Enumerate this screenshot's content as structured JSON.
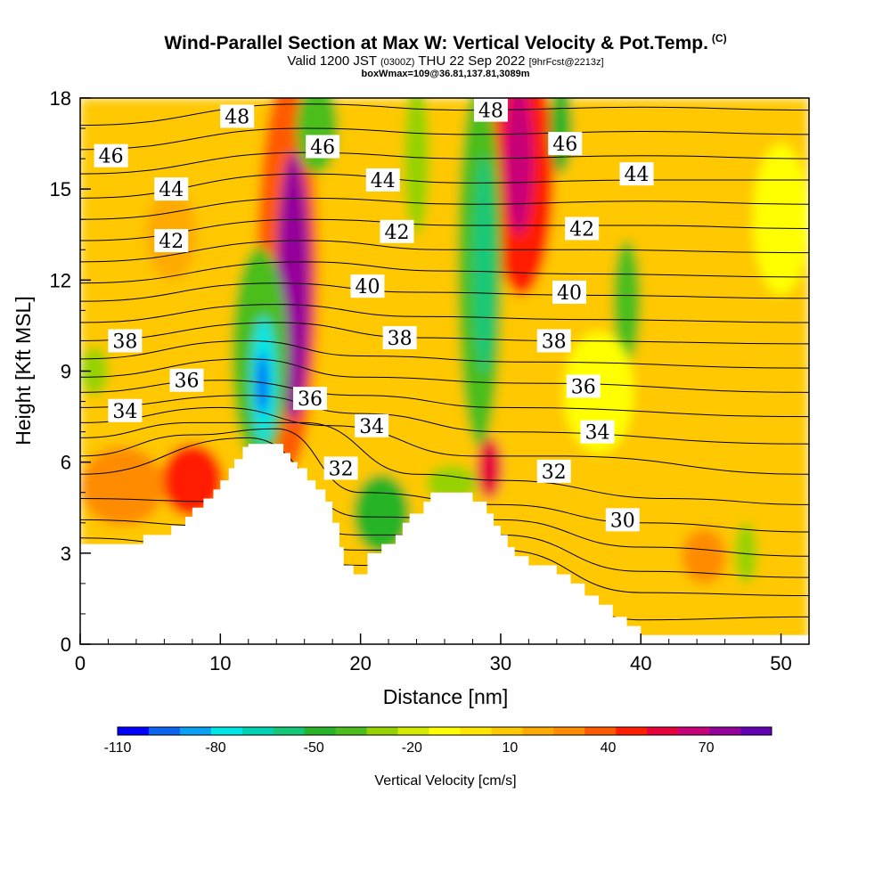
{
  "header": {
    "title": "Wind-Parallel Section at Max W: Vertical Velocity & Pot.Temp.",
    "copyright": "(C)",
    "subtitle_main": "Valid 1200 JST",
    "subtitle_utc": "(0300Z)",
    "subtitle_date": "THU 22 Sep 2022",
    "subtitle_fcst": "[9hrFcst@2213z]",
    "boxline": "boxWmax=109@36.81,137.81,3089m"
  },
  "chart_data": {
    "type": "heatmap",
    "title": "Wind-Parallel Section at Max W: Vertical Velocity & Pot.Temp.",
    "xlabel": "Distance [nm]",
    "ylabel": "Height [Kft MSL]",
    "xlim": [
      0,
      52
    ],
    "ylim": [
      0,
      18
    ],
    "x_ticks": [
      0,
      10,
      20,
      30,
      40,
      50
    ],
    "y_ticks": [
      0,
      3,
      6,
      9,
      12,
      15,
      18
    ],
    "colorbar": {
      "label": "Vertical Velocity [cm/s]",
      "tick_labels": [
        "-110",
        "-80",
        "-50",
        "-20",
        "10",
        "40",
        "70"
      ],
      "tick_values": [
        -110,
        -80,
        -50,
        -20,
        10,
        40,
        70
      ],
      "range": [
        -110,
        90
      ],
      "colors": [
        "#0000ff",
        "#0a64f0",
        "#0aa0f5",
        "#00e6e6",
        "#00d2b4",
        "#14c878",
        "#28b428",
        "#4bbe1e",
        "#96d200",
        "#d2eb00",
        "#ffff00",
        "#ffe600",
        "#ffc800",
        "#ffaa00",
        "#ff8c00",
        "#ff5a00",
        "#ff1e00",
        "#e6003c",
        "#c80078",
        "#96009a",
        "#6400b4"
      ]
    },
    "terrain_top_kft": [
      [
        0,
        3.3
      ],
      [
        2,
        3.3
      ],
      [
        4.5,
        3.3
      ],
      [
        4.5,
        3.6
      ],
      [
        6.5,
        3.6
      ],
      [
        6.5,
        3.9
      ],
      [
        7.5,
        3.9
      ],
      [
        7.5,
        4.2
      ],
      [
        8,
        4.2
      ],
      [
        8,
        4.5
      ],
      [
        8.8,
        4.5
      ],
      [
        8.8,
        4.8
      ],
      [
        9.5,
        4.8
      ],
      [
        9.5,
        5.1
      ],
      [
        10,
        5.1
      ],
      [
        10,
        5.4
      ],
      [
        10.6,
        5.4
      ],
      [
        10.6,
        5.8
      ],
      [
        11,
        5.8
      ],
      [
        11,
        6.1
      ],
      [
        11.6,
        6.1
      ],
      [
        11.6,
        6.5
      ],
      [
        12,
        6.5
      ],
      [
        12,
        6.6
      ],
      [
        14.5,
        6.6
      ],
      [
        14.5,
        6.3
      ],
      [
        15,
        6.3
      ],
      [
        15,
        6.0
      ],
      [
        15.5,
        6.0
      ],
      [
        15.5,
        5.8
      ],
      [
        16.2,
        5.8
      ],
      [
        16.2,
        5.4
      ],
      [
        16.8,
        5.4
      ],
      [
        16.8,
        5.1
      ],
      [
        17.5,
        5.1
      ],
      [
        17.5,
        4.7
      ],
      [
        18,
        4.7
      ],
      [
        18,
        4.0
      ],
      [
        18.5,
        4.0
      ],
      [
        18.5,
        3.2
      ],
      [
        18.8,
        3.2
      ],
      [
        18.8,
        2.6
      ],
      [
        19.5,
        2.6
      ],
      [
        19.5,
        2.3
      ],
      [
        20.5,
        2.3
      ],
      [
        20.5,
        3.0
      ],
      [
        21.5,
        3.0
      ],
      [
        21.5,
        3.3
      ],
      [
        22.5,
        3.3
      ],
      [
        22.5,
        3.6
      ],
      [
        23,
        3.6
      ],
      [
        23,
        4.0
      ],
      [
        23.5,
        4.0
      ],
      [
        23.5,
        4.3
      ],
      [
        24.5,
        4.3
      ],
      [
        24.5,
        4.7
      ],
      [
        25,
        4.7
      ],
      [
        25,
        5.0
      ],
      [
        28,
        5.0
      ],
      [
        28,
        4.7
      ],
      [
        29,
        4.7
      ],
      [
        29,
        4.3
      ],
      [
        29.5,
        4.3
      ],
      [
        29.5,
        3.9
      ],
      [
        30,
        3.9
      ],
      [
        30,
        3.6
      ],
      [
        30.5,
        3.6
      ],
      [
        30.5,
        3.2
      ],
      [
        31,
        3.2
      ],
      [
        31,
        2.9
      ],
      [
        32,
        2.9
      ],
      [
        32,
        2.6
      ],
      [
        34,
        2.6
      ],
      [
        34,
        2.3
      ],
      [
        35,
        2.3
      ],
      [
        35,
        2.0
      ],
      [
        36,
        2.0
      ],
      [
        36,
        1.6
      ],
      [
        37,
        1.6
      ],
      [
        37,
        1.3
      ],
      [
        38,
        1.3
      ],
      [
        38,
        0.9
      ],
      [
        39,
        0.9
      ],
      [
        39,
        0.6
      ],
      [
        40,
        0.6
      ],
      [
        40,
        0.3
      ],
      [
        52,
        0.3
      ],
      [
        52,
        0
      ]
    ],
    "potential_temperature_contours_C": [
      30,
      32,
      34,
      36,
      38,
      40,
      42,
      44,
      46,
      48
    ],
    "contour_labels": [
      {
        "text": "48",
        "x": 11.2,
        "y": 17.4
      },
      {
        "text": "46",
        "x": 2.2,
        "y": 16.1
      },
      {
        "text": "46",
        "x": 17.3,
        "y": 16.4
      },
      {
        "text": "48",
        "x": 29.3,
        "y": 17.6
      },
      {
        "text": "46",
        "x": 34.6,
        "y": 16.5
      },
      {
        "text": "44",
        "x": 6.5,
        "y": 15.0
      },
      {
        "text": "44",
        "x": 21.6,
        "y": 15.3
      },
      {
        "text": "44",
        "x": 39.7,
        "y": 15.5
      },
      {
        "text": "42",
        "x": 6.5,
        "y": 13.3
      },
      {
        "text": "42",
        "x": 22.6,
        "y": 13.6
      },
      {
        "text": "42",
        "x": 35.8,
        "y": 13.7
      },
      {
        "text": "40",
        "x": 20.5,
        "y": 11.8
      },
      {
        "text": "40",
        "x": 34.9,
        "y": 11.6
      },
      {
        "text": "38",
        "x": 3.2,
        "y": 10.0
      },
      {
        "text": "38",
        "x": 22.8,
        "y": 10.1
      },
      {
        "text": "38",
        "x": 33.8,
        "y": 10.0
      },
      {
        "text": "36",
        "x": 7.6,
        "y": 8.7
      },
      {
        "text": "36",
        "x": 16.4,
        "y": 8.1
      },
      {
        "text": "36",
        "x": 35.9,
        "y": 8.5
      },
      {
        "text": "34",
        "x": 3.2,
        "y": 7.7
      },
      {
        "text": "34",
        "x": 20.8,
        "y": 7.2
      },
      {
        "text": "34",
        "x": 36.9,
        "y": 7.0
      },
      {
        "text": "32",
        "x": 18.6,
        "y": 5.8
      },
      {
        "text": "32",
        "x": 33.8,
        "y": 5.7
      },
      {
        "text": "30",
        "x": 38.7,
        "y": 4.1
      }
    ],
    "vertical_velocity_features_cm_s": [
      {
        "x": 0,
        "y": 0,
        "w": 52,
        "h": 18,
        "v": 10
      },
      {
        "x": 14.8,
        "y": 12.2,
        "rx": 2.2,
        "ry": 6.5,
        "v": 40
      },
      {
        "x": 15.2,
        "y": 11.8,
        "rx": 1.2,
        "ry": 4.4,
        "v": 75
      },
      {
        "x": 31.5,
        "y": 15.5,
        "rx": 2.3,
        "ry": 4.0,
        "v": 45
      },
      {
        "x": 31.3,
        "y": 16.0,
        "rx": 1.0,
        "ry": 2.5,
        "v": 62
      },
      {
        "x": 12.8,
        "y": 9.5,
        "rx": 2.0,
        "ry": 3.6,
        "v": -40
      },
      {
        "x": 13.1,
        "y": 8.7,
        "rx": 0.9,
        "ry": 2.1,
        "v": -80
      },
      {
        "x": 13.0,
        "y": 8.6,
        "rx": 0.35,
        "ry": 1.0,
        "v": -110
      },
      {
        "x": 28.5,
        "y": 12.5,
        "rx": 1.6,
        "ry": 6.0,
        "v": -35
      },
      {
        "x": 28.8,
        "y": 12.5,
        "rx": 0.8,
        "ry": 3.6,
        "v": -55
      },
      {
        "x": 8.0,
        "y": 5.4,
        "rx": 2.2,
        "ry": 1.2,
        "v": 45
      },
      {
        "x": 3.0,
        "y": 5.2,
        "rx": 3.0,
        "ry": 1.3,
        "v": 25
      },
      {
        "x": 29.2,
        "y": 5.8,
        "rx": 0.9,
        "ry": 1.0,
        "v": 55
      },
      {
        "x": 21.5,
        "y": 4.3,
        "rx": 2.0,
        "ry": 1.3,
        "v": -45
      },
      {
        "x": 26.5,
        "y": 5.3,
        "rx": 1.8,
        "ry": 0.6,
        "v": -30
      },
      {
        "x": 16.9,
        "y": 17.0,
        "rx": 1.5,
        "ry": 1.5,
        "v": -40
      },
      {
        "x": 24.0,
        "y": 16.0,
        "rx": 0.9,
        "ry": 2.5,
        "v": -25
      },
      {
        "x": 34.3,
        "y": 17.0,
        "rx": 0.8,
        "ry": 1.5,
        "v": -50
      },
      {
        "x": 39.0,
        "y": 11.3,
        "rx": 1.0,
        "ry": 2.0,
        "v": -35
      },
      {
        "x": 1.0,
        "y": 9.0,
        "rx": 1.0,
        "ry": 0.8,
        "v": -25
      },
      {
        "x": 47.5,
        "y": 3.0,
        "rx": 0.8,
        "ry": 1.0,
        "v": -25
      },
      {
        "x": 44.5,
        "y": 2.9,
        "rx": 1.6,
        "ry": 0.9,
        "v": 25
      },
      {
        "x": 6.5,
        "y": 13.5,
        "rx": 1.8,
        "ry": 1.5,
        "v": 22
      },
      {
        "x": 37.0,
        "y": 8.3,
        "rx": 2.5,
        "ry": 2.0,
        "v": -12
      },
      {
        "x": 50.0,
        "y": 14.0,
        "rx": 2.0,
        "ry": 2.5,
        "v": -12
      }
    ]
  }
}
